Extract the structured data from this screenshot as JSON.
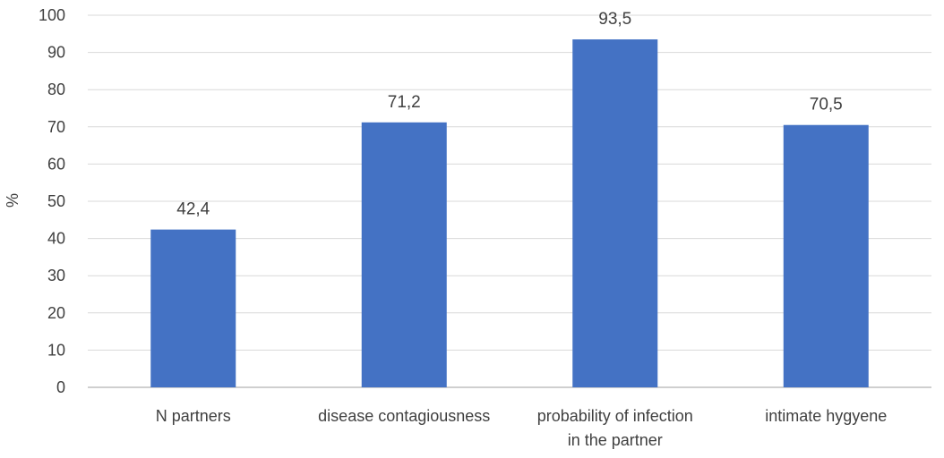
{
  "chart_data": {
    "type": "bar",
    "title": "",
    "xlabel": "",
    "ylabel": "%",
    "categories": [
      [
        "N partners"
      ],
      [
        "disease contagiousness"
      ],
      [
        "probability of infection",
        "in the partner"
      ],
      [
        "intimate hygyene"
      ]
    ],
    "series": [
      {
        "values": [
          42.4,
          71.2,
          93.5,
          70.5
        ],
        "data_labels": [
          "42,4",
          "71,2",
          "93,5",
          "70,5"
        ],
        "color": "#4472C4"
      }
    ],
    "ylim": [
      0,
      100
    ],
    "yticks": [
      "0",
      "10",
      "20",
      "30",
      "40",
      "50",
      "60",
      "70",
      "80",
      "90",
      "100"
    ],
    "grid": true,
    "legend": "none"
  },
  "colors": {
    "bar": "#4472C4",
    "grid": "#D9D9D9",
    "axis": "#BFBFBF",
    "text": "#404040"
  }
}
